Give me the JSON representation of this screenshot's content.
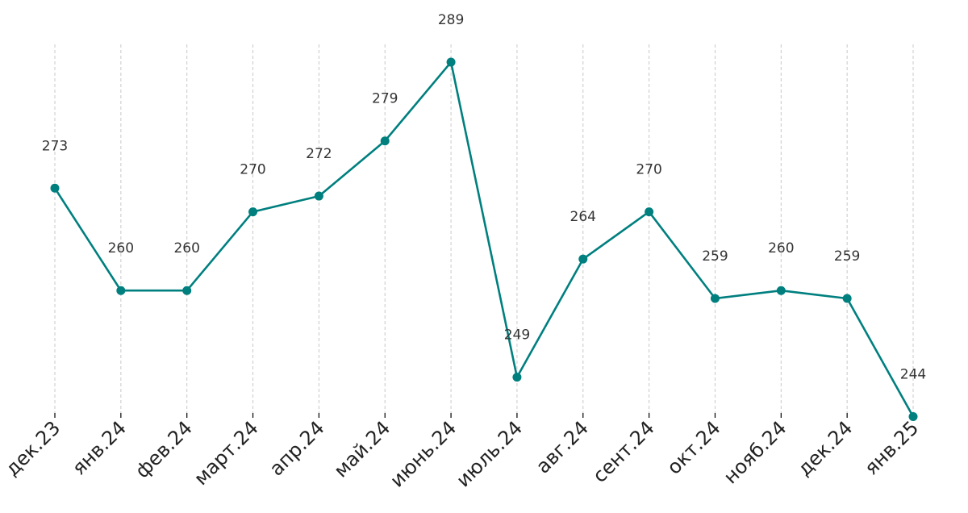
{
  "chart_data": {
    "type": "line",
    "title": "",
    "xlabel": "",
    "ylabel": "",
    "categories": [
      "дек.23",
      "янв.24",
      "фев.24",
      "март.24",
      "апр.24",
      "май.24",
      "июнь.24",
      "июль.24",
      "авг.24",
      "сент.24",
      "окт.24",
      "нояб.24",
      "дек.24",
      "янв.25"
    ],
    "series": [
      {
        "values": [
          273,
          260,
          260,
          270,
          272,
          279,
          289,
          249,
          264,
          270,
          259,
          260,
          259,
          244
        ]
      }
    ],
    "ylim": [
      242,
      293
    ],
    "grid": "vertical-dashed",
    "legend": "none",
    "data_labels": true,
    "colors": {
      "series": "#007f7f",
      "grid": "#c8c8c8",
      "text": "#333333"
    }
  }
}
